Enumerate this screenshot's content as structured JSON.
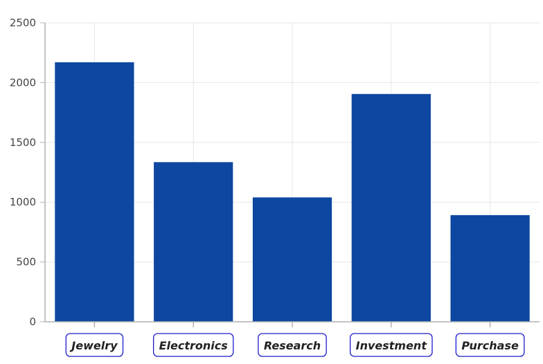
{
  "chart_data": {
    "type": "bar",
    "categories": [
      "Jewelry",
      "Electronics",
      "Research",
      "Investment",
      "Purchase"
    ],
    "values": [
      2170,
      1335,
      1040,
      1905,
      892
    ],
    "title": "",
    "xlabel": "",
    "ylabel": "",
    "ylim": [
      0,
      2500
    ],
    "yticks": [
      0,
      500,
      1000,
      1500,
      2000,
      2500
    ],
    "grid": true,
    "legend": "none",
    "colors": {
      "bar": "#0d47a1",
      "grid": "#e6e6e6",
      "axis": "#b0b0b0",
      "label_border": "#1a1acc"
    }
  }
}
